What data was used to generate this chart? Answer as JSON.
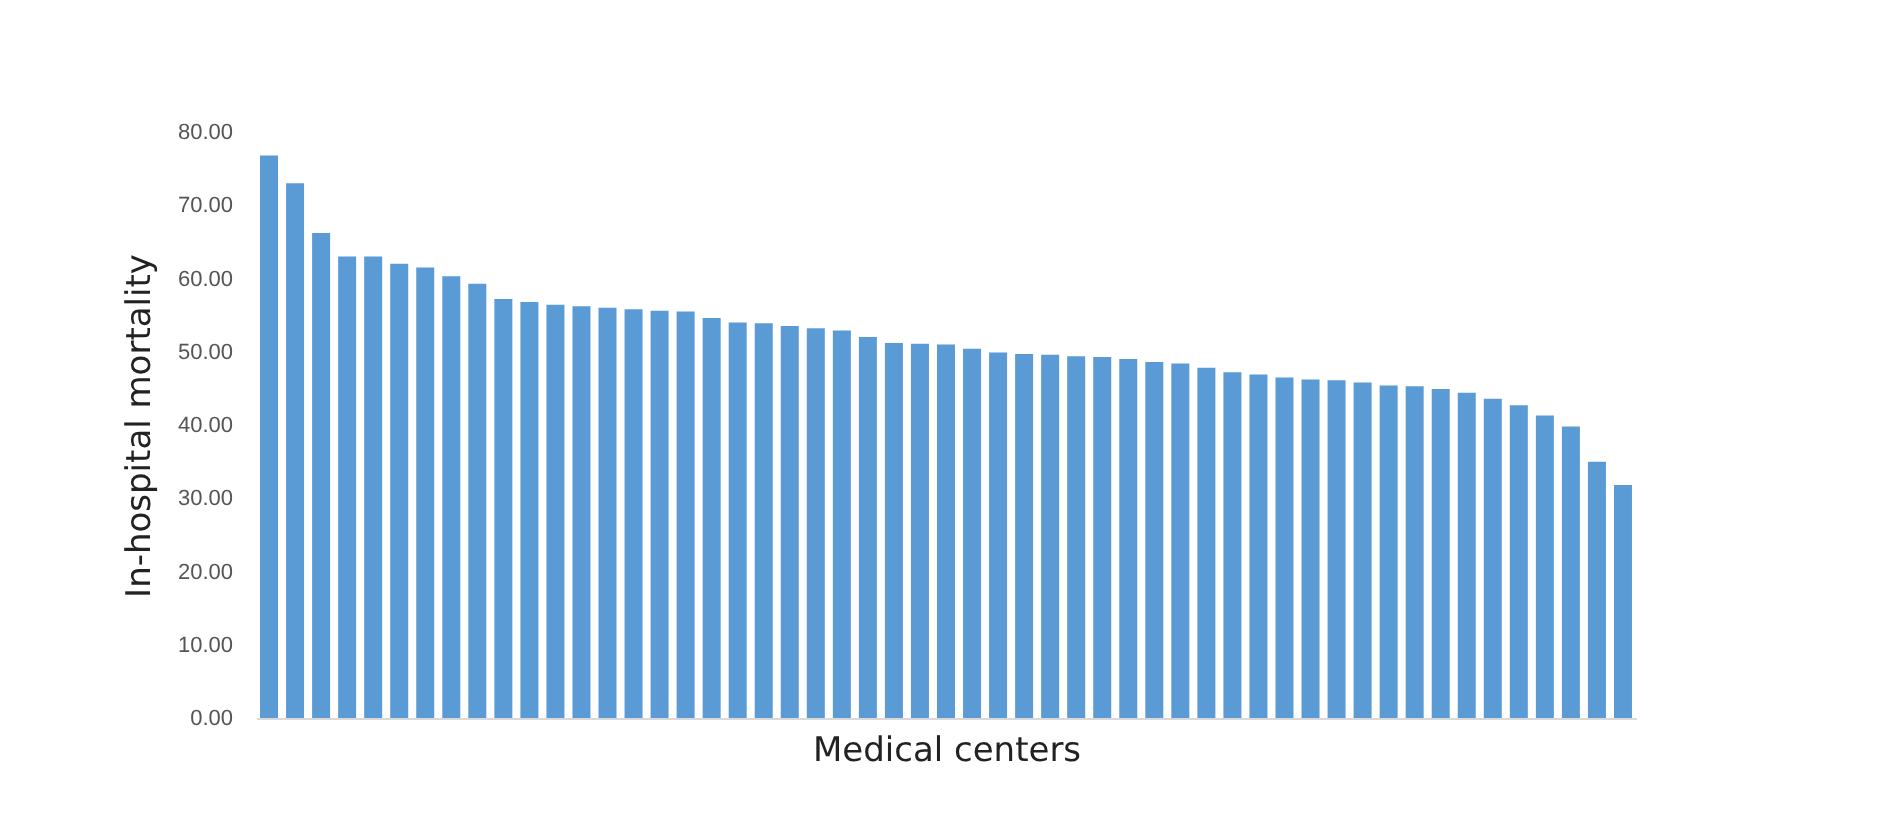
{
  "chart_data": {
    "type": "bar",
    "xlabel": "Medical centers",
    "ylabel": "In-hospital mortality",
    "categories": [
      null,
      null,
      null,
      null,
      null,
      null,
      null,
      null,
      null,
      null,
      null,
      null,
      null,
      null,
      null,
      null,
      null,
      null,
      null,
      null,
      null,
      null,
      null,
      null,
      null,
      null,
      null,
      null,
      null,
      null,
      null,
      null,
      null,
      null,
      null,
      null,
      null,
      null,
      null,
      null,
      null,
      null,
      null,
      null,
      null,
      null,
      null,
      null,
      null,
      null,
      null,
      null,
      null
    ],
    "values": [
      76.8,
      73.0,
      66.2,
      63.0,
      63.0,
      62.0,
      61.5,
      60.3,
      59.3,
      57.2,
      56.8,
      56.4,
      56.2,
      56.0,
      55.8,
      55.6,
      55.5,
      54.6,
      54.0,
      53.9,
      53.5,
      53.2,
      52.9,
      52.0,
      51.2,
      51.1,
      51.0,
      50.4,
      49.9,
      49.7,
      49.6,
      49.4,
      49.3,
      49.0,
      48.6,
      48.4,
      47.8,
      47.2,
      46.9,
      46.5,
      46.2,
      46.1,
      45.8,
      45.4,
      45.3,
      44.9,
      44.4,
      43.6,
      42.7,
      41.3,
      39.8,
      35.0,
      31.8
    ],
    "color": "#5b9bd5",
    "ylim": [
      0,
      80
    ],
    "yticks": [
      {
        "value": 0,
        "label": "0.00"
      },
      {
        "value": 10,
        "label": "10.00"
      },
      {
        "value": 20,
        "label": "20.00"
      },
      {
        "value": 30,
        "label": "30.00"
      },
      {
        "value": 40,
        "label": "40.00"
      },
      {
        "value": 50,
        "label": "50.00"
      },
      {
        "value": 60,
        "label": "60.00"
      },
      {
        "value": 70,
        "label": "70.00"
      },
      {
        "value": 80,
        "label": "80.00"
      }
    ],
    "grid": false,
    "tick_labels": "y"
  }
}
